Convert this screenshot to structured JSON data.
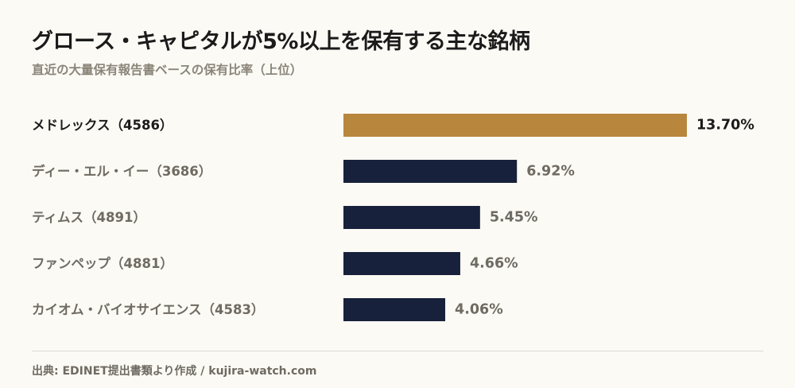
{
  "header": {
    "title": "グロース・キャピタルが5%以上を保有する主な銘柄",
    "subtitle": "直近の大量保有報告書ベースの保有比率（上位）"
  },
  "footer": {
    "source": "出典: EDINET提出書類より作成 / kujira-watch.com"
  },
  "colors": {
    "highlight": "#b8863c",
    "bar": "#18213b",
    "label_highlight": "#1b1b1b",
    "label": "#6f6b62"
  },
  "chart_data": {
    "type": "bar",
    "orientation": "horizontal",
    "categories": [
      "メドレックス（4586）",
      "ディー・エル・イー（3686）",
      "ティムス（4891）",
      "ファンペップ（4881）",
      "カイオム・バイオサイエンス（4583）"
    ],
    "values": [
      13.7,
      6.92,
      5.45,
      4.66,
      4.06
    ],
    "value_labels": [
      "13.70%",
      "6.92%",
      "5.45%",
      "4.66%",
      "4.06%"
    ],
    "unit": "%",
    "highlight_index": 0,
    "xlim": [
      0,
      13.7
    ],
    "grid": false,
    "legend": "none"
  }
}
